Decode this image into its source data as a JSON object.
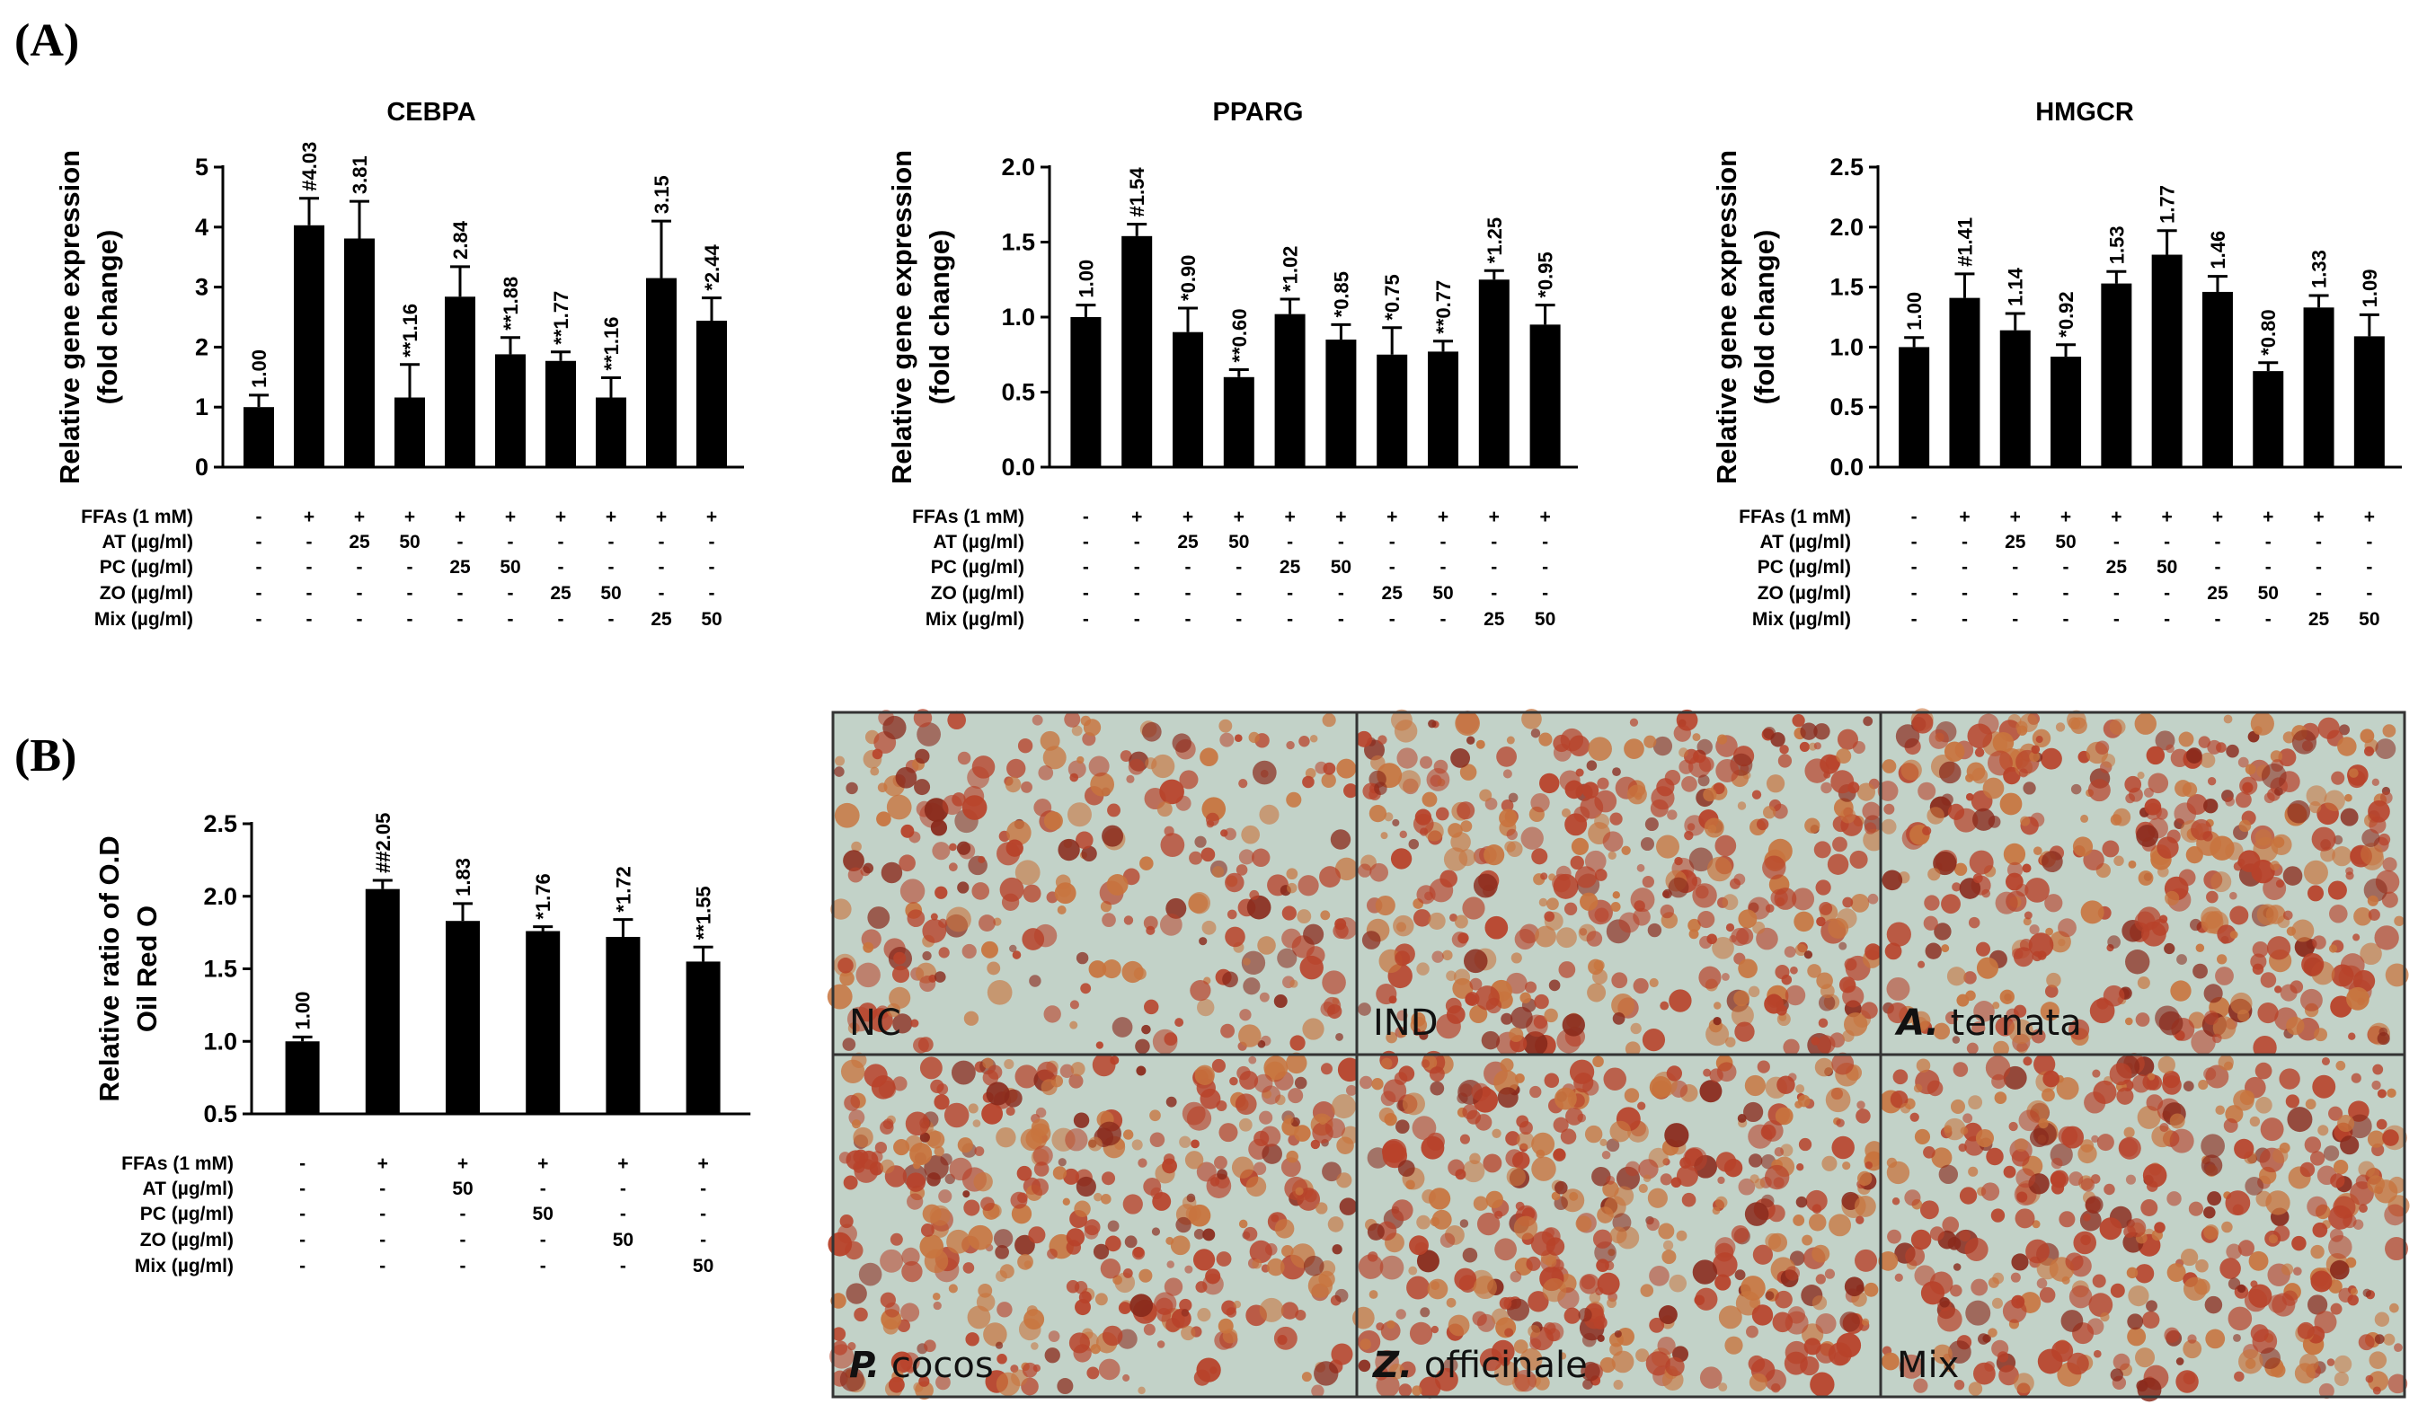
{
  "panel_labels": {
    "a": "(A)",
    "b": "(B)"
  },
  "colors": {
    "bar": "#000000",
    "micro_bg": "#c2d2c8",
    "micro_red": "#b8422a",
    "micro_orange": "#c8743e",
    "micro_dark": "#8a2a1c",
    "micro_text": "#111111"
  },
  "conditions": {
    "labels": [
      "FFAs (1 mM)",
      "AT (µg/ml)",
      "PC (µg/ml)",
      "ZO (µg/ml)",
      "Mix (µg/ml)"
    ],
    "panel_a": [
      [
        "-",
        "+",
        "+",
        "+",
        "+",
        "+",
        "+",
        "+",
        "+",
        "+"
      ],
      [
        "-",
        "-",
        "25",
        "50",
        "-",
        "-",
        "-",
        "-",
        "-",
        "-"
      ],
      [
        "-",
        "-",
        "-",
        "-",
        "25",
        "50",
        "-",
        "-",
        "-",
        "-"
      ],
      [
        "-",
        "-",
        "-",
        "-",
        "-",
        "-",
        "25",
        "50",
        "-",
        "-"
      ],
      [
        "-",
        "-",
        "-",
        "-",
        "-",
        "-",
        "-",
        "-",
        "25",
        "50"
      ]
    ],
    "panel_b": [
      [
        "-",
        "+",
        "+",
        "+",
        "+",
        "+"
      ],
      [
        "-",
        "-",
        "50",
        "-",
        "-",
        "-"
      ],
      [
        "-",
        "-",
        "-",
        "50",
        "-",
        "-"
      ],
      [
        "-",
        "-",
        "-",
        "-",
        "50",
        "-"
      ],
      [
        "-",
        "-",
        "-",
        "-",
        "-",
        "50"
      ]
    ]
  },
  "chart_data": [
    {
      "type": "bar",
      "title": "CEBPA",
      "ylabel": [
        "Relative gene expression",
        "(fold change)"
      ],
      "ylim": [
        0,
        5
      ],
      "yticks": [
        "0",
        "1",
        "2",
        "3",
        "4",
        "5"
      ],
      "values": [
        1.0,
        4.03,
        3.81,
        1.16,
        2.84,
        1.88,
        1.77,
        1.16,
        3.15,
        2.44
      ],
      "errors": [
        0.2,
        0.45,
        0.62,
        0.55,
        0.5,
        0.28,
        0.15,
        0.33,
        0.95,
        0.38
      ],
      "labels": [
        "1.00",
        "#4.03",
        "3.81",
        "**1.16",
        "2.84",
        "**1.88",
        "**1.77",
        "**1.16",
        "3.15",
        "*2.44"
      ]
    },
    {
      "type": "bar",
      "title": "PPARG",
      "ylabel": [
        "Relative gene expression",
        "(fold change)"
      ],
      "ylim": [
        0,
        2.0
      ],
      "yticks": [
        "0.0",
        "0.5",
        "1.0",
        "1.5",
        "2.0"
      ],
      "values": [
        1.0,
        1.54,
        0.9,
        0.6,
        1.02,
        0.85,
        0.75,
        0.77,
        1.25,
        0.95
      ],
      "errors": [
        0.08,
        0.08,
        0.16,
        0.05,
        0.1,
        0.1,
        0.18,
        0.07,
        0.06,
        0.13
      ],
      "labels": [
        "1.00",
        "#1.54",
        "*0.90",
        "**0.60",
        "*1.02",
        "*0.85",
        "*0.75",
        "**0.77",
        "*1.25",
        "*0.95"
      ]
    },
    {
      "type": "bar",
      "title": "HMGCR",
      "ylabel": [
        "Relative gene expression",
        "(fold change)"
      ],
      "ylim": [
        0,
        2.5
      ],
      "yticks": [
        "0.0",
        "0.5",
        "1.0",
        "1.5",
        "2.0",
        "2.5"
      ],
      "values": [
        1.0,
        1.41,
        1.14,
        0.92,
        1.53,
        1.77,
        1.46,
        0.8,
        1.33,
        1.09
      ],
      "errors": [
        0.08,
        0.2,
        0.14,
        0.1,
        0.1,
        0.2,
        0.13,
        0.07,
        0.1,
        0.18
      ],
      "labels": [
        "1.00",
        "#1.41",
        "1.14",
        "*0.92",
        "1.53",
        "1.77",
        "1.46",
        "*0.80",
        "1.33",
        "1.09"
      ]
    },
    {
      "type": "bar",
      "title": "",
      "ylabel": [
        "Relative ratio of O.D",
        "Oil Red O"
      ],
      "ylim": [
        0.5,
        2.5
      ],
      "yticks": [
        "0.5",
        "1.0",
        "1.5",
        "2.0",
        "2.5"
      ],
      "values": [
        1.0,
        2.05,
        1.83,
        1.76,
        1.72,
        1.55
      ],
      "errors": [
        0.03,
        0.06,
        0.12,
        0.03,
        0.12,
        0.1
      ],
      "labels": [
        "1.00",
        "##2.05",
        "1.83",
        "*1.76",
        "*1.72",
        "**1.55"
      ]
    }
  ],
  "micrographs": [
    {
      "label": "NC",
      "italic": "",
      "rest": "NC"
    },
    {
      "label": "IND",
      "italic": "",
      "rest": "IND"
    },
    {
      "label": "A. ternata",
      "italic": "A.",
      "rest": " ternata"
    },
    {
      "label": "P. cocos",
      "italic": "P.",
      "rest": " cocos"
    },
    {
      "label": "Z. officinale",
      "italic": "Z.",
      "rest": " officinale"
    },
    {
      "label": "Mix",
      "italic": "",
      "rest": "Mix"
    }
  ]
}
